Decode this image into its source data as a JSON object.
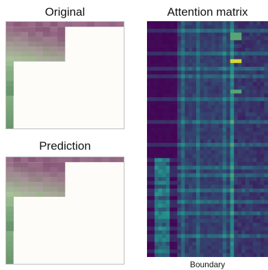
{
  "panels": {
    "original": {
      "title": "Original"
    },
    "prediction": {
      "title": "Prediction"
    },
    "attention": {
      "title": "Attention matrix",
      "xlabel": "Boundary"
    }
  },
  "colors": {
    "background": "#fdfcf8",
    "mauve_dark": "#8e5f7e",
    "mauve_light": "#c4a0b9",
    "green_light": "#a8c79a",
    "green_dark": "#5f8d65",
    "viridis_low": "#440154",
    "viridis_mid": "#21918c",
    "viridis_high": "#fde725"
  }
}
